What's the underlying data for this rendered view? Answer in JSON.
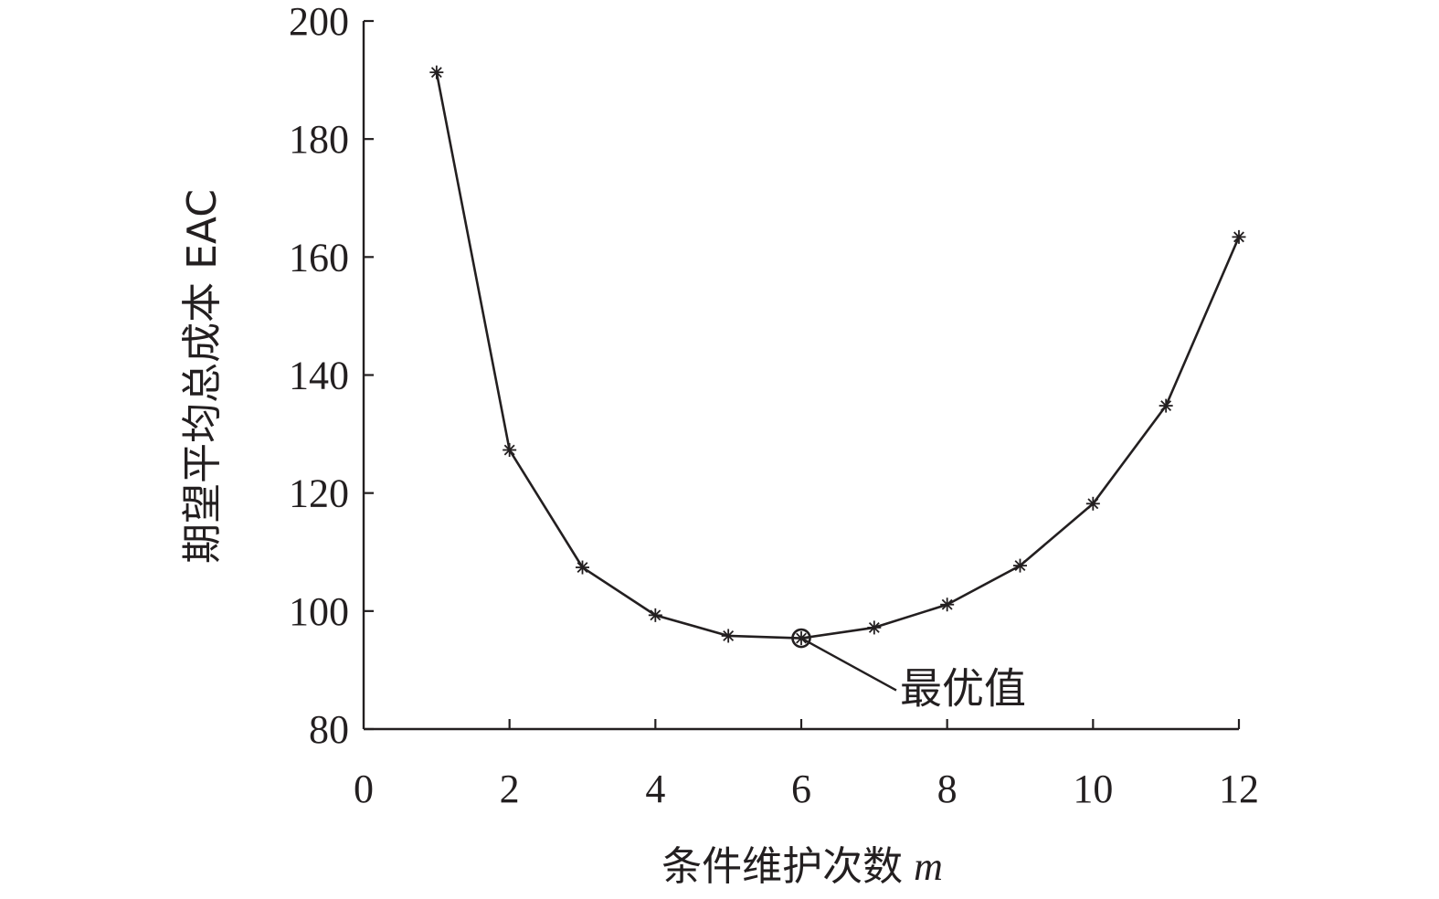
{
  "chart_data": {
    "type": "line",
    "title": "",
    "xlabel_text": "条件维护次数",
    "xlabel_var": "m",
    "ylabel": "期望平均总成本 EAC",
    "xlim": [
      0,
      12
    ],
    "ylim": [
      80,
      200
    ],
    "xticks": [
      0,
      2,
      4,
      6,
      8,
      10,
      12
    ],
    "yticks": [
      80,
      100,
      120,
      140,
      160,
      180,
      200
    ],
    "grid": false,
    "legend": "none",
    "line_color": "#231f20",
    "marker": "asterisk",
    "series": [
      {
        "x": [
          1,
          2,
          3,
          4,
          5,
          6,
          7,
          8,
          9,
          10,
          11,
          12
        ],
        "values": [
          191.3,
          127.3,
          107.4,
          99.3,
          95.8,
          95.4,
          97.2,
          101.1,
          107.7,
          118.2,
          134.8,
          163.4
        ]
      }
    ],
    "annotations": [
      {
        "text": "最优值",
        "x": 6,
        "y": 95.4,
        "marker": "circle"
      }
    ]
  }
}
